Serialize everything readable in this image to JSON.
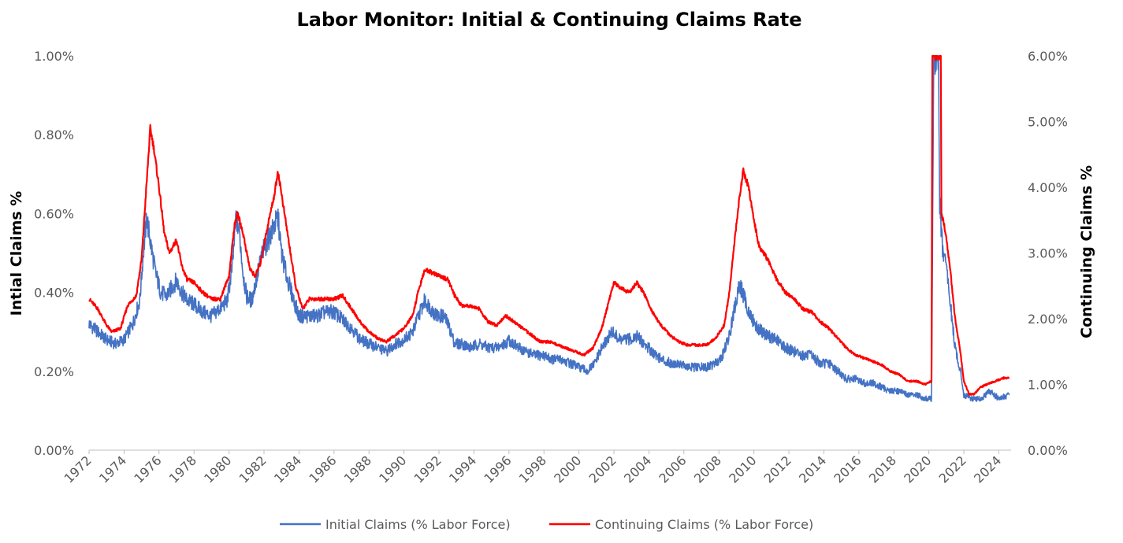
{
  "chart_data": {
    "type": "line",
    "title": "Labor Monitor: Initial & Continuing Claims Rate",
    "ylabel_left": "Intial Claims %",
    "ylabel_right": "Continuing Claims %",
    "y_left_ticks": [
      "0.00%",
      "0.20%",
      "0.40%",
      "0.60%",
      "0.80%",
      "1.00%"
    ],
    "y_right_ticks": [
      "0.00%",
      "1.00%",
      "2.00%",
      "3.00%",
      "4.00%",
      "5.00%",
      "6.00%"
    ],
    "ylim_left": [
      0,
      1.0
    ],
    "ylim_right": [
      0,
      6.0
    ],
    "xlim": [
      1972.0,
      2024.7
    ],
    "x_ticks": [
      "1972",
      "1974",
      "1976",
      "1978",
      "1980",
      "1982",
      "1984",
      "1986",
      "1988",
      "1990",
      "1992",
      "1994",
      "1996",
      "1998",
      "2000",
      "2002",
      "2004",
      "2006",
      "2008",
      "2010",
      "2012",
      "2014",
      "2016",
      "2018",
      "2020",
      "2022",
      "2024"
    ],
    "legend": {
      "position": "bottom"
    },
    "series": [
      {
        "name": "Initial Claims (% Labor Force)",
        "axis": "left",
        "color": "#4472C4",
        "points": [
          [
            1972.0,
            0.32
          ],
          [
            1972.5,
            0.3
          ],
          [
            1973.0,
            0.28
          ],
          [
            1973.5,
            0.27
          ],
          [
            1974.0,
            0.28
          ],
          [
            1974.5,
            0.32
          ],
          [
            1974.9,
            0.38
          ],
          [
            1975.1,
            0.5
          ],
          [
            1975.3,
            0.59
          ],
          [
            1975.5,
            0.53
          ],
          [
            1975.8,
            0.45
          ],
          [
            1976.1,
            0.4
          ],
          [
            1976.4,
            0.39
          ],
          [
            1976.7,
            0.41
          ],
          [
            1977.0,
            0.43
          ],
          [
            1977.3,
            0.4
          ],
          [
            1977.6,
            0.38
          ],
          [
            1978.0,
            0.37
          ],
          [
            1978.5,
            0.35
          ],
          [
            1979.0,
            0.34
          ],
          [
            1979.5,
            0.36
          ],
          [
            1979.9,
            0.38
          ],
          [
            1980.2,
            0.47
          ],
          [
            1980.4,
            0.59
          ],
          [
            1980.6,
            0.55
          ],
          [
            1980.8,
            0.45
          ],
          [
            1981.0,
            0.39
          ],
          [
            1981.3,
            0.38
          ],
          [
            1981.6,
            0.44
          ],
          [
            1981.9,
            0.5
          ],
          [
            1982.2,
            0.53
          ],
          [
            1982.5,
            0.56
          ],
          [
            1982.8,
            0.59
          ],
          [
            1983.0,
            0.5
          ],
          [
            1983.3,
            0.44
          ],
          [
            1983.7,
            0.38
          ],
          [
            1984.0,
            0.34
          ],
          [
            1984.5,
            0.34
          ],
          [
            1985.0,
            0.34
          ],
          [
            1985.5,
            0.35
          ],
          [
            1986.0,
            0.35
          ],
          [
            1986.5,
            0.33
          ],
          [
            1987.0,
            0.31
          ],
          [
            1987.5,
            0.28
          ],
          [
            1988.0,
            0.27
          ],
          [
            1988.5,
            0.26
          ],
          [
            1989.0,
            0.25
          ],
          [
            1989.5,
            0.27
          ],
          [
            1990.0,
            0.28
          ],
          [
            1990.5,
            0.3
          ],
          [
            1990.9,
            0.35
          ],
          [
            1991.2,
            0.38
          ],
          [
            1991.5,
            0.36
          ],
          [
            1991.9,
            0.34
          ],
          [
            1992.3,
            0.34
          ],
          [
            1992.6,
            0.31
          ],
          [
            1992.9,
            0.27
          ],
          [
            1993.3,
            0.27
          ],
          [
            1993.8,
            0.26
          ],
          [
            1994.3,
            0.27
          ],
          [
            1994.8,
            0.26
          ],
          [
            1995.3,
            0.26
          ],
          [
            1995.8,
            0.27
          ],
          [
            1996.0,
            0.28
          ],
          [
            1996.5,
            0.26
          ],
          [
            1997.0,
            0.25
          ],
          [
            1997.5,
            0.24
          ],
          [
            1998.0,
            0.24
          ],
          [
            1998.5,
            0.23
          ],
          [
            1999.0,
            0.23
          ],
          [
            1999.5,
            0.22
          ],
          [
            2000.0,
            0.21
          ],
          [
            2000.5,
            0.2
          ],
          [
            2000.9,
            0.22
          ],
          [
            2001.2,
            0.25
          ],
          [
            2001.6,
            0.28
          ],
          [
            2001.9,
            0.3
          ],
          [
            2002.3,
            0.28
          ],
          [
            2002.8,
            0.28
          ],
          [
            2003.3,
            0.29
          ],
          [
            2003.7,
            0.27
          ],
          [
            2004.2,
            0.25
          ],
          [
            2004.7,
            0.23
          ],
          [
            2005.3,
            0.22
          ],
          [
            2005.8,
            0.22
          ],
          [
            2006.2,
            0.21
          ],
          [
            2006.7,
            0.21
          ],
          [
            2007.3,
            0.21
          ],
          [
            2007.8,
            0.22
          ],
          [
            2008.2,
            0.24
          ],
          [
            2008.6,
            0.29
          ],
          [
            2008.9,
            0.36
          ],
          [
            2009.2,
            0.42
          ],
          [
            2009.5,
            0.38
          ],
          [
            2009.8,
            0.34
          ],
          [
            2010.2,
            0.31
          ],
          [
            2010.8,
            0.29
          ],
          [
            2011.3,
            0.28
          ],
          [
            2011.8,
            0.26
          ],
          [
            2012.3,
            0.25
          ],
          [
            2012.8,
            0.24
          ],
          [
            2013.3,
            0.24
          ],
          [
            2013.8,
            0.22
          ],
          [
            2014.3,
            0.22
          ],
          [
            2014.8,
            0.2
          ],
          [
            2015.3,
            0.18
          ],
          [
            2015.8,
            0.18
          ],
          [
            2016.3,
            0.17
          ],
          [
            2016.8,
            0.17
          ],
          [
            2017.3,
            0.16
          ],
          [
            2017.8,
            0.15
          ],
          [
            2018.3,
            0.15
          ],
          [
            2018.8,
            0.14
          ],
          [
            2019.3,
            0.14
          ],
          [
            2019.8,
            0.13
          ],
          [
            2020.15,
            0.13
          ],
          [
            2020.22,
            0.6
          ],
          [
            2020.28,
            1.0
          ],
          [
            2020.55,
            1.0
          ],
          [
            2020.62,
            0.62
          ],
          [
            2020.8,
            0.5
          ],
          [
            2021.0,
            0.47
          ],
          [
            2021.2,
            0.38
          ],
          [
            2021.5,
            0.26
          ],
          [
            2021.8,
            0.2
          ],
          [
            2022.0,
            0.14
          ],
          [
            2022.5,
            0.13
          ],
          [
            2023.0,
            0.13
          ],
          [
            2023.5,
            0.15
          ],
          [
            2024.0,
            0.13
          ],
          [
            2024.6,
            0.14
          ]
        ]
      },
      {
        "name": "Continuing Claims (% Labor Force)",
        "axis": "right",
        "color": "#FF0000",
        "points": [
          [
            1972.0,
            2.3
          ],
          [
            1972.5,
            2.15
          ],
          [
            1973.0,
            1.9
          ],
          [
            1973.3,
            1.8
          ],
          [
            1973.8,
            1.85
          ],
          [
            1974.2,
            2.2
          ],
          [
            1974.7,
            2.35
          ],
          [
            1975.0,
            2.9
          ],
          [
            1975.3,
            4.1
          ],
          [
            1975.5,
            4.9
          ],
          [
            1975.7,
            4.6
          ],
          [
            1976.0,
            4.0
          ],
          [
            1976.3,
            3.3
          ],
          [
            1976.6,
            3.0
          ],
          [
            1977.0,
            3.2
          ],
          [
            1977.3,
            2.8
          ],
          [
            1977.6,
            2.6
          ],
          [
            1978.0,
            2.55
          ],
          [
            1978.5,
            2.4
          ],
          [
            1979.0,
            2.3
          ],
          [
            1979.5,
            2.3
          ],
          [
            1980.0,
            2.65
          ],
          [
            1980.3,
            3.4
          ],
          [
            1980.5,
            3.6
          ],
          [
            1980.8,
            3.3
          ],
          [
            1981.2,
            2.75
          ],
          [
            1981.5,
            2.65
          ],
          [
            1981.8,
            2.85
          ],
          [
            1982.2,
            3.4
          ],
          [
            1982.6,
            3.9
          ],
          [
            1982.8,
            4.25
          ],
          [
            1983.0,
            3.9
          ],
          [
            1983.4,
            3.2
          ],
          [
            1983.8,
            2.5
          ],
          [
            1984.2,
            2.15
          ],
          [
            1984.6,
            2.3
          ],
          [
            1985.0,
            2.3
          ],
          [
            1985.5,
            2.3
          ],
          [
            1986.0,
            2.3
          ],
          [
            1986.5,
            2.35
          ],
          [
            1987.0,
            2.15
          ],
          [
            1987.5,
            1.95
          ],
          [
            1988.0,
            1.8
          ],
          [
            1988.5,
            1.7
          ],
          [
            1989.0,
            1.65
          ],
          [
            1989.5,
            1.75
          ],
          [
            1990.0,
            1.85
          ],
          [
            1990.5,
            2.05
          ],
          [
            1990.8,
            2.4
          ],
          [
            1991.2,
            2.75
          ],
          [
            1991.6,
            2.7
          ],
          [
            1992.0,
            2.65
          ],
          [
            1992.5,
            2.6
          ],
          [
            1992.9,
            2.35
          ],
          [
            1993.3,
            2.2
          ],
          [
            1993.8,
            2.2
          ],
          [
            1994.3,
            2.15
          ],
          [
            1994.8,
            1.95
          ],
          [
            1995.3,
            1.9
          ],
          [
            1995.8,
            2.05
          ],
          [
            1996.3,
            1.95
          ],
          [
            1996.8,
            1.85
          ],
          [
            1997.3,
            1.75
          ],
          [
            1997.8,
            1.65
          ],
          [
            1998.3,
            1.65
          ],
          [
            1998.8,
            1.6
          ],
          [
            1999.3,
            1.55
          ],
          [
            1999.8,
            1.5
          ],
          [
            2000.3,
            1.45
          ],
          [
            2000.8,
            1.55
          ],
          [
            2001.3,
            1.85
          ],
          [
            2001.7,
            2.25
          ],
          [
            2002.0,
            2.55
          ],
          [
            2002.5,
            2.45
          ],
          [
            2002.9,
            2.4
          ],
          [
            2003.3,
            2.55
          ],
          [
            2003.7,
            2.4
          ],
          [
            2004.2,
            2.1
          ],
          [
            2004.7,
            1.9
          ],
          [
            2005.2,
            1.75
          ],
          [
            2005.7,
            1.65
          ],
          [
            2006.2,
            1.6
          ],
          [
            2006.7,
            1.6
          ],
          [
            2007.3,
            1.6
          ],
          [
            2007.8,
            1.7
          ],
          [
            2008.3,
            1.9
          ],
          [
            2008.6,
            2.4
          ],
          [
            2008.9,
            3.2
          ],
          [
            2009.2,
            3.9
          ],
          [
            2009.4,
            4.25
          ],
          [
            2009.7,
            4.0
          ],
          [
            2010.0,
            3.5
          ],
          [
            2010.3,
            3.1
          ],
          [
            2010.8,
            2.9
          ],
          [
            2011.3,
            2.6
          ],
          [
            2011.8,
            2.4
          ],
          [
            2012.3,
            2.3
          ],
          [
            2012.8,
            2.15
          ],
          [
            2013.3,
            2.1
          ],
          [
            2013.8,
            1.95
          ],
          [
            2014.3,
            1.85
          ],
          [
            2014.8,
            1.7
          ],
          [
            2015.3,
            1.55
          ],
          [
            2015.8,
            1.45
          ],
          [
            2016.3,
            1.4
          ],
          [
            2016.8,
            1.35
          ],
          [
            2017.3,
            1.3
          ],
          [
            2017.8,
            1.2
          ],
          [
            2018.3,
            1.15
          ],
          [
            2018.8,
            1.05
          ],
          [
            2019.3,
            1.05
          ],
          [
            2019.8,
            1.0
          ],
          [
            2020.15,
            1.05
          ],
          [
            2020.2,
            6.0
          ],
          [
            2020.68,
            6.0
          ],
          [
            2020.72,
            3.6
          ],
          [
            2020.9,
            3.4
          ],
          [
            2021.2,
            2.8
          ],
          [
            2021.5,
            2.0
          ],
          [
            2021.8,
            1.5
          ],
          [
            2022.0,
            1.05
          ],
          [
            2022.3,
            0.85
          ],
          [
            2022.6,
            0.85
          ],
          [
            2022.9,
            0.95
          ],
          [
            2023.3,
            1.0
          ],
          [
            2023.8,
            1.05
          ],
          [
            2024.3,
            1.1
          ],
          [
            2024.6,
            1.1
          ]
        ]
      }
    ]
  }
}
